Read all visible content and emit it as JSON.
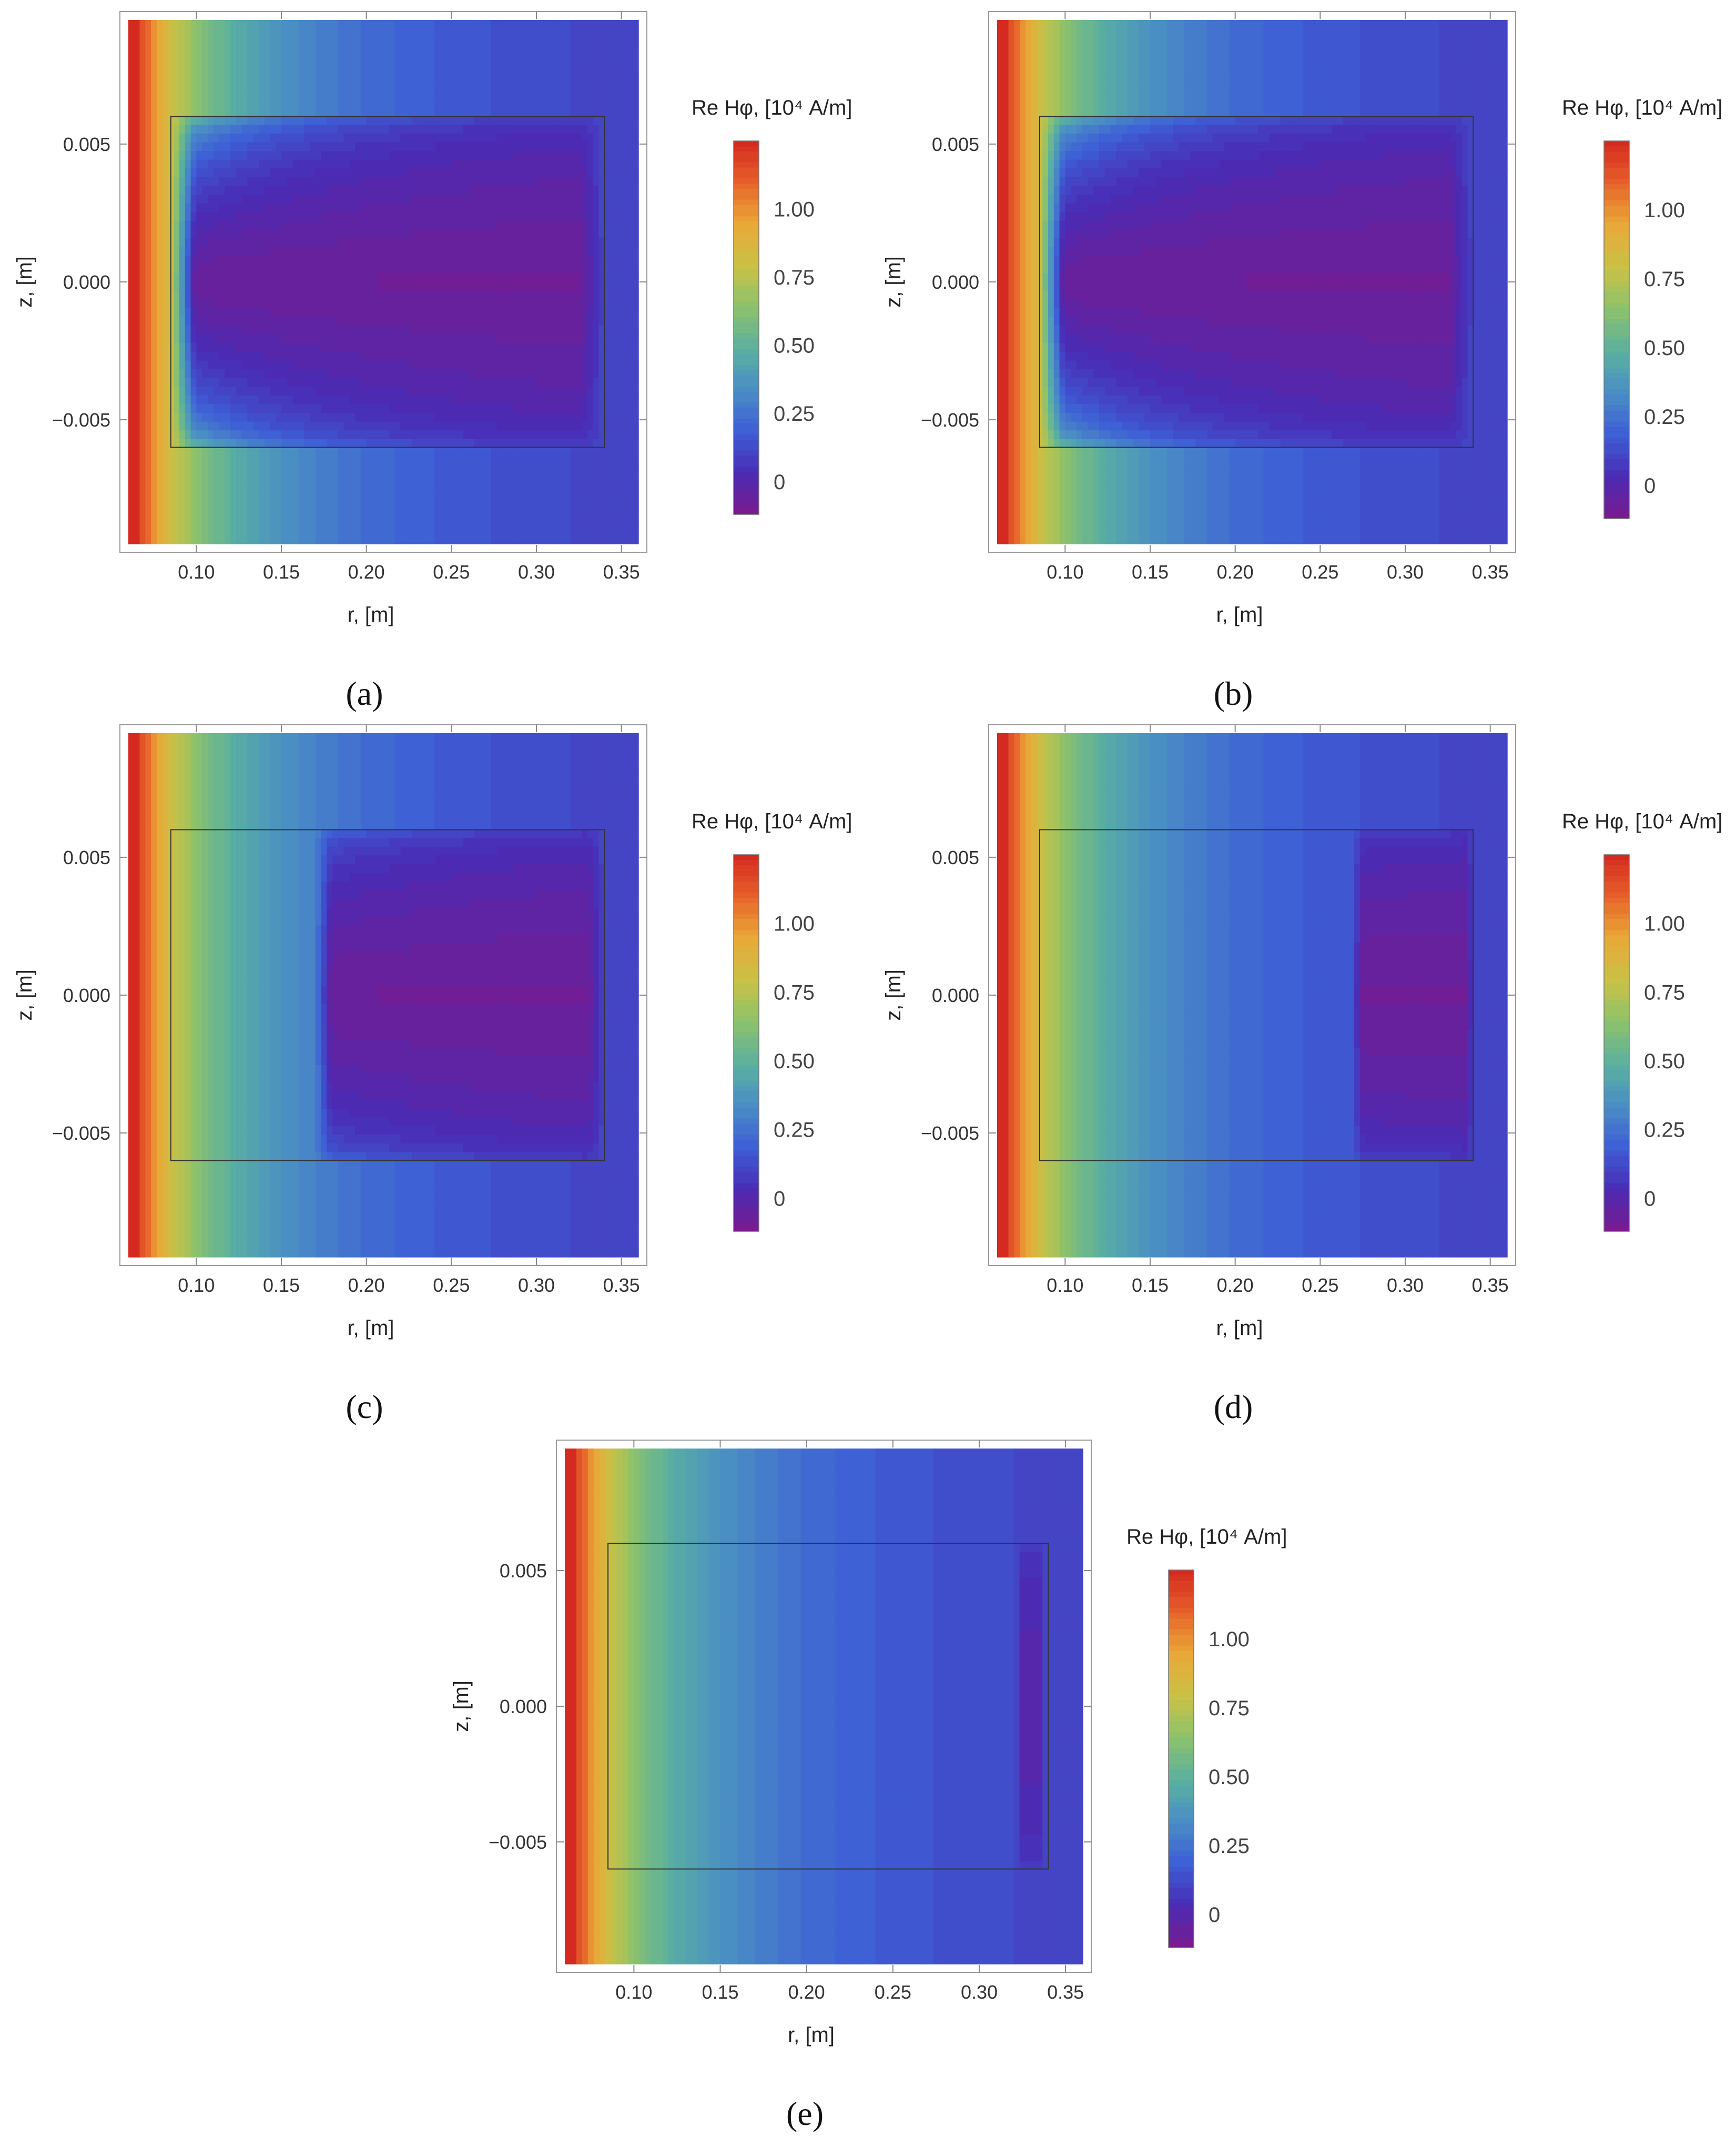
{
  "chart_data": [
    {
      "type": "heatmap",
      "panel": "a",
      "caption": "(a)",
      "xlabel": "r, [m]",
      "ylabel": "z, [m]",
      "xlim": [
        0.06,
        0.36
      ],
      "ylim": [
        -0.0095,
        0.0095
      ],
      "xticks": [
        "0.10",
        "0.15",
        "0.20",
        "0.25",
        "0.30",
        "0.35"
      ],
      "xtick_values": [
        0.1,
        0.15,
        0.2,
        0.25,
        0.3,
        0.35
      ],
      "yticks": [
        "0.005",
        "0.000",
        "−0.005"
      ],
      "ytick_values": [
        0.005,
        0.0,
        -0.005
      ],
      "colorbar_title": "Re Hφ, [10⁴ A/m]",
      "colorbar_ticks": [
        "1.00",
        "0.75",
        "0.50",
        "0.25",
        "0"
      ],
      "colorbar_tick_values": [
        1.0,
        0.75,
        0.5,
        0.25,
        0.0
      ],
      "colorbar_range": [
        -0.12,
        1.25
      ],
      "conductor": {
        "r": [
          0.085,
          0.34
        ],
        "z": [
          -0.006,
          0.006
        ]
      },
      "shielded_region": {
        "r_start": 0.085,
        "r_end": 0.34,
        "min_value": -0.08
      }
    },
    {
      "type": "heatmap",
      "panel": "b",
      "caption": "(b)",
      "xlabel": "r, [m]",
      "ylabel": "z, [m]",
      "xlim": [
        0.06,
        0.36
      ],
      "ylim": [
        -0.0095,
        0.0095
      ],
      "xticks": [
        "0.10",
        "0.15",
        "0.20",
        "0.25",
        "0.30",
        "0.35"
      ],
      "xtick_values": [
        0.1,
        0.15,
        0.2,
        0.25,
        0.3,
        0.35
      ],
      "yticks": [
        "0.005",
        "0.000",
        "−0.005"
      ],
      "ytick_values": [
        0.005,
        0.0,
        -0.005
      ],
      "colorbar_title": "Re Hφ, [10⁴ A/m]",
      "colorbar_ticks": [
        "1.00",
        "0.75",
        "0.50",
        "0.25",
        "0"
      ],
      "colorbar_tick_values": [
        1.0,
        0.75,
        0.5,
        0.25,
        0.0
      ],
      "colorbar_range": [
        -0.12,
        1.25
      ],
      "conductor": {
        "r": [
          0.085,
          0.34
        ],
        "z": [
          -0.006,
          0.006
        ]
      },
      "shielded_region": {
        "r_start": 0.085,
        "r_end": 0.34,
        "min_value": -0.08
      }
    },
    {
      "type": "heatmap",
      "panel": "c",
      "caption": "(c)",
      "xlabel": "r, [m]",
      "ylabel": "z, [m]",
      "xlim": [
        0.06,
        0.36
      ],
      "ylim": [
        -0.0095,
        0.0095
      ],
      "xticks": [
        "0.10",
        "0.15",
        "0.20",
        "0.25",
        "0.30",
        "0.35"
      ],
      "xtick_values": [
        0.1,
        0.15,
        0.2,
        0.25,
        0.3,
        0.35
      ],
      "yticks": [
        "0.005",
        "0.000",
        "−0.005"
      ],
      "ytick_values": [
        0.005,
        0.0,
        -0.005
      ],
      "colorbar_title": "Re Hφ, [10⁴ A/m]",
      "colorbar_ticks": [
        "1.00",
        "0.75",
        "0.50",
        "0.25",
        "0"
      ],
      "colorbar_tick_values": [
        1.0,
        0.75,
        0.5,
        0.25,
        0.0
      ],
      "colorbar_range": [
        -0.12,
        1.25
      ],
      "conductor": {
        "r": [
          0.085,
          0.34
        ],
        "z": [
          -0.006,
          0.006
        ]
      },
      "shielded_region": {
        "r_start": 0.17,
        "r_end": 0.34,
        "min_value": -0.08
      }
    },
    {
      "type": "heatmap",
      "panel": "d",
      "caption": "(d)",
      "xlabel": "r, [m]",
      "ylabel": "z, [m]",
      "xlim": [
        0.06,
        0.36
      ],
      "ylim": [
        -0.0095,
        0.0095
      ],
      "xticks": [
        "0.10",
        "0.15",
        "0.20",
        "0.25",
        "0.30",
        "0.35"
      ],
      "xtick_values": [
        0.1,
        0.15,
        0.2,
        0.25,
        0.3,
        0.35
      ],
      "yticks": [
        "0.005",
        "0.000",
        "−0.005"
      ],
      "ytick_values": [
        0.005,
        0.0,
        -0.005
      ],
      "colorbar_title": "Re Hφ, [10⁴ A/m]",
      "colorbar_ticks": [
        "1.00",
        "0.75",
        "0.50",
        "0.25",
        "0"
      ],
      "colorbar_tick_values": [
        1.0,
        0.75,
        0.5,
        0.25,
        0.0
      ],
      "colorbar_range": [
        -0.12,
        1.25
      ],
      "conductor": {
        "r": [
          0.085,
          0.34
        ],
        "z": [
          -0.006,
          0.006
        ]
      },
      "shielded_region": {
        "r_start": 0.27,
        "r_end": 0.34,
        "min_value": -0.08
      }
    },
    {
      "type": "heatmap",
      "panel": "e",
      "caption": "(e)",
      "xlabel": "r, [m]",
      "ylabel": "z, [m]",
      "xlim": [
        0.06,
        0.36
      ],
      "ylim": [
        -0.0095,
        0.0095
      ],
      "xticks": [
        "0.10",
        "0.15",
        "0.20",
        "0.25",
        "0.30",
        "0.35"
      ],
      "xtick_values": [
        0.1,
        0.15,
        0.2,
        0.25,
        0.3,
        0.35
      ],
      "yticks": [
        "0.005",
        "0.000",
        "−0.005"
      ],
      "ytick_values": [
        0.005,
        0.0,
        -0.005
      ],
      "colorbar_title": "Re Hφ, [10⁴ A/m]",
      "colorbar_ticks": [
        "1.00",
        "0.75",
        "0.50",
        "0.25",
        "0"
      ],
      "colorbar_tick_values": [
        1.0,
        0.75,
        0.5,
        0.25,
        0.0
      ],
      "colorbar_range": [
        -0.12,
        1.25
      ],
      "conductor": {
        "r": [
          0.085,
          0.34
        ],
        "z": [
          -0.006,
          0.006
        ]
      },
      "shielded_region": {
        "r_start": 0.322,
        "r_end": 0.338,
        "min_value": -0.02
      }
    }
  ],
  "colormap": [
    "#7a1b8f",
    "#4a2bb4",
    "#3d5ed6",
    "#4a8fc4",
    "#5ab0a0",
    "#8ec26a",
    "#c9c246",
    "#e9a838",
    "#e8602a",
    "#d42a20"
  ]
}
